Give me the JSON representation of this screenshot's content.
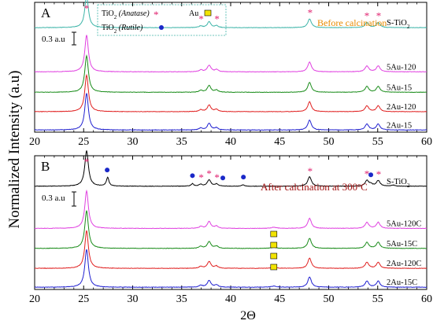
{
  "y_axis_label": "Normalized Intensity (a.u)",
  "x_axis_label": "2Θ",
  "colors": {
    "S-TiO2": "#3cb4a8",
    "5Au-120": "#e040e0",
    "5Au-15": "#1a8c1a",
    "2Au-120": "#e02020",
    "2Au-15": "#2020d0",
    "S-TiO2-calc": "#000000",
    "5Au-120C": "#e040e0",
    "5Au-15C": "#1a8c1a",
    "2Au-120C": "#e02020",
    "2Au-15C": "#2020d0",
    "anatase_marker": "#e0206e",
    "rutile_marker": "#1a28c8",
    "au_marker": "#f2e400",
    "title_A": "#e88a00",
    "title_B": "#a01010"
  },
  "legend": {
    "anatase_html": "TiO<tspan baseline-shift='sub' font-size='7'>2</tspan> <tspan font-style='italic'>(Anatase)</tspan>",
    "rutile_html": "TiO<tspan baseline-shift='sub' font-size='7'>2</tspan> <tspan font-style='italic'>(Rutile)</tspan>",
    "au_label": "Au",
    "anatase_symbol": "*"
  },
  "chart_data": [
    {
      "panel": "A",
      "type": "line",
      "title": "Before calcination",
      "xlabel": "2Θ",
      "ylabel": "Normalized Intensity (a.u)",
      "xlim": [
        20,
        60
      ],
      "x_ticks": [
        20,
        25,
        30,
        35,
        40,
        45,
        50,
        55,
        60
      ],
      "scale_bar_label": "0.3 a.u",
      "peaks_anatase": [
        25.3,
        37.0,
        37.8,
        38.6,
        48.1,
        53.9,
        55.1
      ],
      "series": [
        {
          "name": "S-TiO2",
          "label_main": "S-TiO",
          "label_sub": "2",
          "offset": 0.97,
          "peak_height": 0.62
        },
        {
          "name": "5Au-120",
          "label_main": "5Au-120",
          "label_sub": "",
          "offset": 0.56,
          "peak_height": 0.62
        },
        {
          "name": "5Au-15",
          "label_main": "5Au-15",
          "label_sub": "",
          "offset": 0.37,
          "peak_height": 0.62
        },
        {
          "name": "2Au-120",
          "label_main": "2Au-120",
          "label_sub": "",
          "offset": 0.19,
          "peak_height": 0.62
        },
        {
          "name": "2Au-15",
          "label_main": "2Au-15",
          "label_sub": "",
          "offset": 0.02,
          "peak_height": 0.62
        }
      ]
    },
    {
      "panel": "B",
      "type": "line",
      "title": "After calcination at 300",
      "title_suffix": "C",
      "title_degree": "o",
      "xlabel": "2Θ",
      "ylabel": "Normalized Intensity (a.u)",
      "xlim": [
        20,
        60
      ],
      "x_ticks": [
        20,
        25,
        30,
        35,
        40,
        45,
        50,
        55,
        60
      ],
      "scale_bar_label": "0.3 a.u",
      "peaks_anatase": [
        25.3,
        37.0,
        37.8,
        38.6,
        48.1,
        53.9,
        55.1
      ],
      "peaks_rutile": [
        27.4,
        36.1,
        39.2,
        41.3,
        54.3
      ],
      "peaks_au": [
        44.4
      ],
      "series": [
        {
          "name": "S-TiO2",
          "label_main": "S-TiO",
          "label_sub": "2",
          "offset": 0.93,
          "peak_height": 0.62
        },
        {
          "name": "5Au-120C",
          "label_main": "5Au-120C",
          "label_sub": "",
          "offset": 0.55,
          "peak_height": 0.62
        },
        {
          "name": "5Au-15C",
          "label_main": "5Au-15C",
          "label_sub": "",
          "offset": 0.37,
          "peak_height": 0.62
        },
        {
          "name": "2Au-120C",
          "label_main": "2Au-120C",
          "label_sub": "",
          "offset": 0.19,
          "peak_height": 0.62
        },
        {
          "name": "2Au-15C",
          "label_main": "2Au-15C",
          "label_sub": "",
          "offset": 0.02,
          "peak_height": 0.62
        }
      ]
    }
  ]
}
